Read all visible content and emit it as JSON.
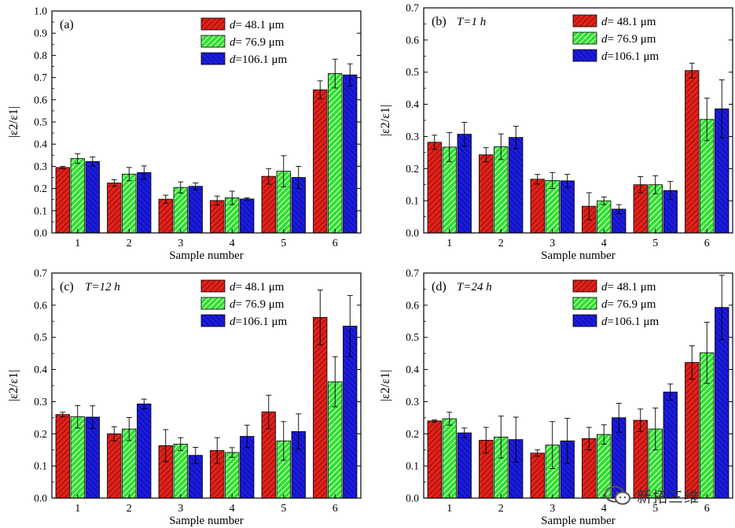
{
  "colors": {
    "d1": "#e32119",
    "d2": "#2fe02f",
    "d3": "#1a1adf",
    "axis": "#000000"
  },
  "chart_data": [
    {
      "type": "bar",
      "panel_label": "(a)",
      "condition": "",
      "ylabel": "|ε2/ε1|",
      "xlabel": "Sample number",
      "categories": [
        "1",
        "2",
        "3",
        "4",
        "5",
        "6"
      ],
      "ylim": [
        0,
        1.0
      ],
      "yticks": [
        "0.0",
        "0.1",
        "0.2",
        "0.3",
        "0.4",
        "0.5",
        "0.6",
        "0.7",
        "0.8",
        "0.9",
        "1.0"
      ],
      "legend_position": "top-right",
      "series": [
        {
          "name": "d= 48.1 μm",
          "values": [
            0.295,
            0.225,
            0.152,
            0.146,
            0.255,
            0.645
          ],
          "errors": [
            0.005,
            0.015,
            0.018,
            0.02,
            0.035,
            0.04
          ]
        },
        {
          "name": "d= 76.9 μm",
          "values": [
            0.335,
            0.265,
            0.205,
            0.158,
            0.278,
            0.718
          ],
          "errors": [
            0.022,
            0.03,
            0.025,
            0.03,
            0.07,
            0.065
          ]
        },
        {
          "name": "d=106.1 μm",
          "values": [
            0.322,
            0.272,
            0.21,
            0.153,
            0.25,
            0.712
          ],
          "errors": [
            0.02,
            0.03,
            0.015,
            0.005,
            0.05,
            0.05
          ]
        }
      ]
    },
    {
      "type": "bar",
      "panel_label": "(b)",
      "condition": "T=1 h",
      "ylabel": "|ε2/ε1|",
      "xlabel": "Sample number",
      "categories": [
        "1",
        "2",
        "3",
        "4",
        "5",
        "6"
      ],
      "ylim": [
        0,
        0.7
      ],
      "yticks": [
        "0.0",
        "0.1",
        "0.2",
        "0.3",
        "0.4",
        "0.5",
        "0.6",
        "0.7"
      ],
      "legend_position": "top-right",
      "series": [
        {
          "name": "d= 48.1 μm",
          "values": [
            0.282,
            0.243,
            0.167,
            0.083,
            0.15,
            0.505
          ],
          "errors": [
            0.022,
            0.022,
            0.015,
            0.042,
            0.025,
            0.023
          ]
        },
        {
          "name": "d= 76.9 μm",
          "values": [
            0.267,
            0.268,
            0.163,
            0.1,
            0.15,
            0.353
          ],
          "errors": [
            0.045,
            0.04,
            0.025,
            0.012,
            0.028,
            0.066
          ]
        },
        {
          "name": "d=106.1 μm",
          "values": [
            0.307,
            0.297,
            0.162,
            0.074,
            0.132,
            0.386
          ],
          "errors": [
            0.037,
            0.035,
            0.02,
            0.014,
            0.028,
            0.09
          ]
        }
      ]
    },
    {
      "type": "bar",
      "panel_label": "(c)",
      "condition": "T=12 h",
      "ylabel": "|ε2/ε1|",
      "xlabel": "Sample number",
      "categories": [
        "1",
        "2",
        "3",
        "4",
        "5",
        "6"
      ],
      "ylim": [
        0,
        0.7
      ],
      "yticks": [
        "0.0",
        "0.1",
        "0.2",
        "0.3",
        "0.4",
        "0.5",
        "0.6",
        "0.7"
      ],
      "legend_position": "top-right",
      "series": [
        {
          "name": "d= 48.1 μm",
          "values": [
            0.26,
            0.2,
            0.163,
            0.148,
            0.268,
            0.562
          ],
          "errors": [
            0.007,
            0.022,
            0.05,
            0.04,
            0.052,
            0.085
          ]
        },
        {
          "name": "d= 76.9 μm",
          "values": [
            0.253,
            0.215,
            0.168,
            0.142,
            0.178,
            0.362
          ],
          "errors": [
            0.035,
            0.036,
            0.02,
            0.015,
            0.06,
            0.078
          ]
        },
        {
          "name": "d=106.1 μm",
          "values": [
            0.252,
            0.293,
            0.133,
            0.192,
            0.207,
            0.535
          ],
          "errors": [
            0.035,
            0.015,
            0.025,
            0.035,
            0.055,
            0.095
          ]
        }
      ]
    },
    {
      "type": "bar",
      "panel_label": "(d)",
      "condition": "T=24 h",
      "ylabel": "|ε2/ε1|",
      "xlabel": "Sample number",
      "categories": [
        "1",
        "2",
        "3",
        "4",
        "5",
        "6"
      ],
      "ylim": [
        0,
        0.7
      ],
      "yticks": [
        "0.0",
        "0.1",
        "0.2",
        "0.3",
        "0.4",
        "0.5",
        "0.6",
        "0.7"
      ],
      "legend_position": "top-right",
      "series": [
        {
          "name": "d= 48.1 μm",
          "values": [
            0.24,
            0.18,
            0.14,
            0.185,
            0.242,
            0.422
          ],
          "errors": [
            0.003,
            0.04,
            0.01,
            0.035,
            0.035,
            0.052
          ]
        },
        {
          "name": "d= 76.9 μm",
          "values": [
            0.247,
            0.19,
            0.165,
            0.198,
            0.215,
            0.452
          ],
          "errors": [
            0.02,
            0.065,
            0.073,
            0.03,
            0.065,
            0.095
          ]
        },
        {
          "name": "d=106.1 μm",
          "values": [
            0.203,
            0.182,
            0.178,
            0.25,
            0.33,
            0.593
          ],
          "errors": [
            0.015,
            0.07,
            0.07,
            0.045,
            0.025,
            0.1
          ]
        }
      ]
    }
  ],
  "watermark": {
    "text": "新拓三维",
    "icon": "wechat-icon"
  }
}
